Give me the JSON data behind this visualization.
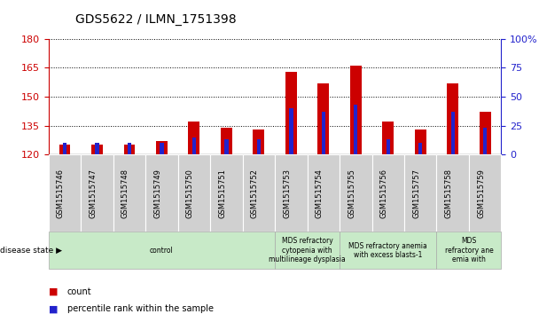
{
  "title": "GDS5622 / ILMN_1751398",
  "samples": [
    "GSM1515746",
    "GSM1515747",
    "GSM1515748",
    "GSM1515749",
    "GSM1515750",
    "GSM1515751",
    "GSM1515752",
    "GSM1515753",
    "GSM1515754",
    "GSM1515755",
    "GSM1515756",
    "GSM1515757",
    "GSM1515758",
    "GSM1515759"
  ],
  "count_values": [
    125,
    125,
    125,
    127,
    137,
    134,
    133,
    163,
    157,
    166,
    137,
    133,
    157,
    142
  ],
  "percentile_values": [
    10,
    10,
    10,
    10,
    15,
    13,
    13,
    40,
    37,
    43,
    13,
    10,
    37,
    23
  ],
  "ylim_left": [
    120,
    180
  ],
  "ylim_right": [
    0,
    100
  ],
  "yticks_left": [
    120,
    135,
    150,
    165,
    180
  ],
  "yticks_right": [
    0,
    25,
    50,
    75,
    100
  ],
  "bar_color_red": "#cc0000",
  "bar_color_blue": "#2222cc",
  "background_color": "#ffffff",
  "sample_box_color": "#d0d0d0",
  "disease_groups": [
    {
      "label": "control",
      "start": 0,
      "end": 7
    },
    {
      "label": "MDS refractory\ncytopenia with\nmultilineage dysplasia",
      "start": 7,
      "end": 9
    },
    {
      "label": "MDS refractory anemia\nwith excess blasts-1",
      "start": 9,
      "end": 12
    },
    {
      "label": "MDS\nrefractory ane\nemia with",
      "start": 12,
      "end": 14
    }
  ],
  "disease_group_color": "#c8eac8",
  "disease_state_label": "disease state",
  "left_tick_color": "#cc0000",
  "right_tick_color": "#2222cc",
  "red_bar_width": 0.35,
  "blue_bar_width": 0.12
}
